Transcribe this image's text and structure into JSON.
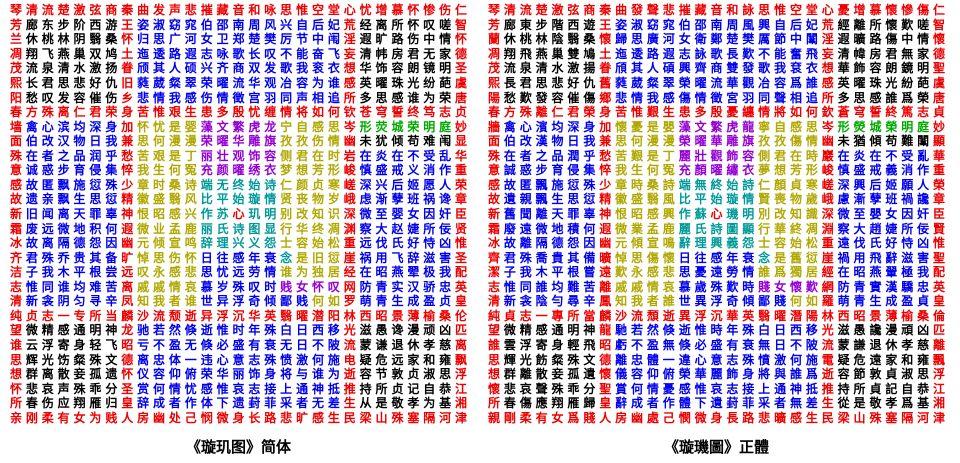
{
  "page": {
    "background": "#ffffff"
  },
  "captions": {
    "left": "《璇玑图》简体",
    "right": "《璇璣圖》正體"
  },
  "palette": {
    "R": "#ee0000",
    "K": "#000000",
    "B": "#0000ee",
    "Y": "#b0a800",
    "P": "#9400d3",
    "G": "#00aa00",
    "T": "#009999"
  },
  "color_map": [
    "RRRRRRRRRRRRRRRRRRRRRRRRRRRRR",
    "RKKKKKKRBBBBBBBBBBBBBRKKKKKKR",
    "RKKKKKKRBBBBBBBBBBBBBRKKKKKKR",
    "RKKKKKKRBBBBBBBBBBBBBRKKKKKKR",
    "RKKKKKKRBBBBBBBBBBBBBRKKKKKKR",
    "RKKKKKKRBBBBBBBBBBBBBRKKKKKKR",
    "RKKKKKKRBBBBBBBBBBBBBRKKKKKKR",
    "RRRRRRRRRRRRRRRRRRRRRRRRRRRRR",
    "RBBBBBBRYYYYPPPPPYYYYRGGGGGGR",
    "RBBBBBBRYYYYPPPPPYYYYRKKKKKKR",
    "RBBBBBBRYYYYPPPPPYYYYRBBBBBBR",
    "RBBBBBBRYYYYPPPPPYYYYRBBBBBBR",
    "RBBBBBBRYYYYTTTTTYYYYRBBBBBBR",
    "RBBBBBBRYYYYTTTTTYYYYRBBBBBBR",
    "RBBBBBBRYYYYTTRTTYYYYRBBBBBBR",
    "RBBBBBBRYYYYTTTTTYYYYRBBBBBBR",
    "RBBBBBBRYYYYTTTTTYYYYRBBBBBBR",
    "RBBBBBBRYYYYBBBBBTYYYRBBBBBBR",
    "RBBBBBBRYYYYBBBBBYYYYRBBBBBBR",
    "RBBBBBBRYYYYBBBBBPPPPRBBBBBBR",
    "RBBBBBBRYYYYBBBBBBBYYRBBBBBBR",
    "RRRRRRRRRRRRRRRRRRRRRRRRRRRRR",
    "RKKKKKKRBBBBBBBBBBBBBRKKKKKKR",
    "RKKKKKKRBBBBBBBBBBBBBRKKKKKKR",
    "RKKKKKKRBBBBBBBBBBBBBRKKKKKKR",
    "RKKKKKKRBBBBBBBBBBBBBRKKKKKKR",
    "RKKKKKKRBBBBBBBBBBBBBRKKKKKKR",
    "RKKKKKKRBBBBBBBBBBBBBRKKKKKKR",
    "RRRRRRRRRRRRRRRRRRRRRRRRRRRRR"
  ],
  "grid_simplified": [
    "琴清流楚激弦商秦曲发声悲摧藏音和咏思惟空堂心忧增慕怀惨伤仁",
    "芳廊东步阶西游王姿淑窈窕伯邵南周风兴自后妃荒经离所怀叹嗟智",
    "兰休桃林阴翳桑怀归思广河女卫郑楚樊厉节中闱淫遐旷路伤中情怀",
    "凋翔飞燕巢双鸠土迤逶路遐志咏歌长叹不能奋飞妄清帏房君无家德",
    "茂流泉清水激扬眷颀其人硕兴齐商双发歌我衮衣想华饰容朗镜明圣",
    "熙长君思悲好仇旧蕤葳粲翠荣曜流华观冶容为谁感英曜珠光纷葩虞",
    "阳愁叹发容催伤乡悲情我感伤情徵宫羽同声相追所多思感谁为荣唐",
    "春方殊离仁君荣身苦惟艰生患多殷忧缠情将如何钦苍穹誓终笃志贞",
    "墙禽心滨均深身加怀忧是婴藻文繁虎龙宁自感思岑形荧城荣明庭妙",
    "面伯改汉物日我兼思何漫漫荣曜华雕旗孜孜伤情幽未犹倾苟难闱显",
    "殊在者之品润乎愁苦艰是丁丽壮观饰容侧君在时岩在炎在不受乱华",
    "意诚惑步育侵集悴我生何冤充颜曜绣衣梦想芳形峻慎盛戒义消作重",
    "感故匿飘施愆殊少章时桑诗端无终始诗仁颜贞寒嵯深兴后姬愿人荣",
    "故遗亲飘生思愆精徽盛翳风比平始璇情贤丧物岁峨虑渐孽班祸谗章",
    "新旧闻离天罪辜神恨昭感兴作苏心玑明别改知识深微至婴女因奸臣",
    "霜废远微地积何遐微业孟鹿丽氏诗图显行华终凋渊察大赵婕所佞贤",
    "冰故离隔德怨因幽元倾宣鸣辞理兴义怨士容始松重远伐氏好恃凶惟",
    "齐君殊乔贵其备旷悼思伤怀日往感年衰念是旧愆崖祸用飞辞滋害圣",
    "洁子我木平根尝远叹永感悲思忧远劳情谁为独居经在昭燕翚极我配",
    "志惟同谁均难苦离戚戚情哀慕岁殊叹时贱女怀叹网防青实汉骄忠英",
    "清新衾阴匀寻辛凤知我者谁世异浮奇倾鄙贱何如罗萌青生成盈贞皇",
    "纯贞志一专所当麟沙流颓逝异浮沉华英翳曜潜阳林西昭景薄榆桑伦",
    "望微精感通明神龙驰若然倏逝惟时年殊白日西移光滋愚谗漫顽凶匹",
    "谁云浮寄身轻飞昭亏不盈无倏必盛有衰无日不陂流蒙谦退休孝慈离",
    "思辉光饬粲殊文德离忠体一违心意志殊愤激何施电疑危远家和雍飘",
    "想群离散妾孤遗怀仪容仰俯荣华丽饰身将与谁为逝容节敦贞淑思浮",
    "怀悲哀声殊乖分圣赏何情忧感惟哀志接上通神抵推持所贞记自恭江",
    "所春伤应翔雁归皇辞成者作体下遗葑菲采者无差生从是敬孝为基湘",
    "亲刚柔有女为贱人房幽处己悯微身长路悲旷感生民梁山殊塞隔河津"
  ],
  "grid_traditional": [
    "琴清流楚激弦商秦曲發聲悲摧藏音和詠思惟空堂心憂增慕懷慘傷仁",
    "芳廊東步階西遊王姿淑窈窕伯邵南周風興自后妃荒經離所懷歎嗟智",
    "蘭休桃林陰翳桑懷歸思廣河女衛鄭楚樊厲節中闈淫遐曠路傷中情懷",
    "凋翔飛燕巢雙鳩土迤逶路遐志詠歌長歎不能奮飛妄清幃房君無家德",
    "茂流泉清水激揚眷頎其人碩興齊商雙發歌我袞衣想華飾容朗鏡明聖",
    "熙長君思悲好仇舊蕤葳粲翠榮曜流華觀冶容爲誰感英曜珠光紛葩虞",
    "陽愁歎發容催傷鄉悲情我感傷情徵宮羽同聲相追所多思感誰爲榮唐",
    "春方殊離仁君榮身苦惟艱生患多殷憂纏情將如何欽蒼穹誓終篤志貞",
    "牆禽心濱均深身加懷憂是嬰藻文繁虎龍寧自感思岑形熒城榮明庭妙",
    "面伯改漢物日我兼思何漫漫榮曜華雕旗孜孜傷情幽未猶傾苟難闈顯",
    "殊在者之品潤乎愁苦艱是丁麗壯觀飾容側君在時巖在炎在不受亂華",
    "意誠惑步育侵集悴我生何冤充顏曜繡衣夢想芳形峻慎盛戒義消作重",
    "感故匿飄施愆殊少章時桑詩端無終始詩仁顏貞寒嵯深興后姬願人榮",
    "故遺親飄生思愆精徽盛翳風比平始璇情賢喪物歲峨慮漸孽班禍讒章",
    "新舊聞離天罪辜神恨昭感興作蘇心璣明別改知識深微至嬰女因奸臣",
    "霜廢遠微地積何遐微業孟鹿麗氏詩圖顯行華終凋淵察大趙婕所佞賢",
    "冰故離隔德怨因幽元傾宣鳴辭理興義怨士容始松重遠伐氏好恃凶惟",
    "齊君殊喬貴其備曠悼思傷懷日往感年衰念是舊愆崖禍用飛辭滋害聖",
    "潔子我木平根嘗遠歎永感悲思憂遠勞情誰爲獨居經在昭燕翬極我配",
    "志惟同誰均難苦離戚戚情哀慕歲殊歎時賤女懷歎網防青實漢驕忠英",
    "清新衾陰勻尋辛鳳知我者誰世異浮奇傾鄙賤何如羅萌青生成盈貞皇",
    "純貞志一專所當麟沙流頹逝異浮沉華英翳曜潛陽林西昭景薄榆桑倫",
    "望微精感通明神龍馳若然倏逝惟時年殊白日西移光滋愚讒漫頑凶匹",
    "誰雲浮寄身輕飛昭虧不盈無倏必盛有衰無日不陂流蒙謙退休孝慈離",
    "思輝光飭粲殊文德離忠體一違心意志殊憤激何施電疑危遠家和雍飄",
    "想群離散妾孤遺懷儀容仰俯榮華麗飾身將與誰爲逝容節敦貞淑思浮",
    "懷悲哀聲殊乖分聖賞何情憂感惟哀志接上通神抵推持所貞記自恭江",
    "所春傷應翔雁歸皇辭成者作體下遺葑菲采者無差生從是敬孝爲基湘",
    "親剛柔有女爲賤人房幽處己憫微身長路悲曠感生民梁山殊塞隔河津"
  ]
}
